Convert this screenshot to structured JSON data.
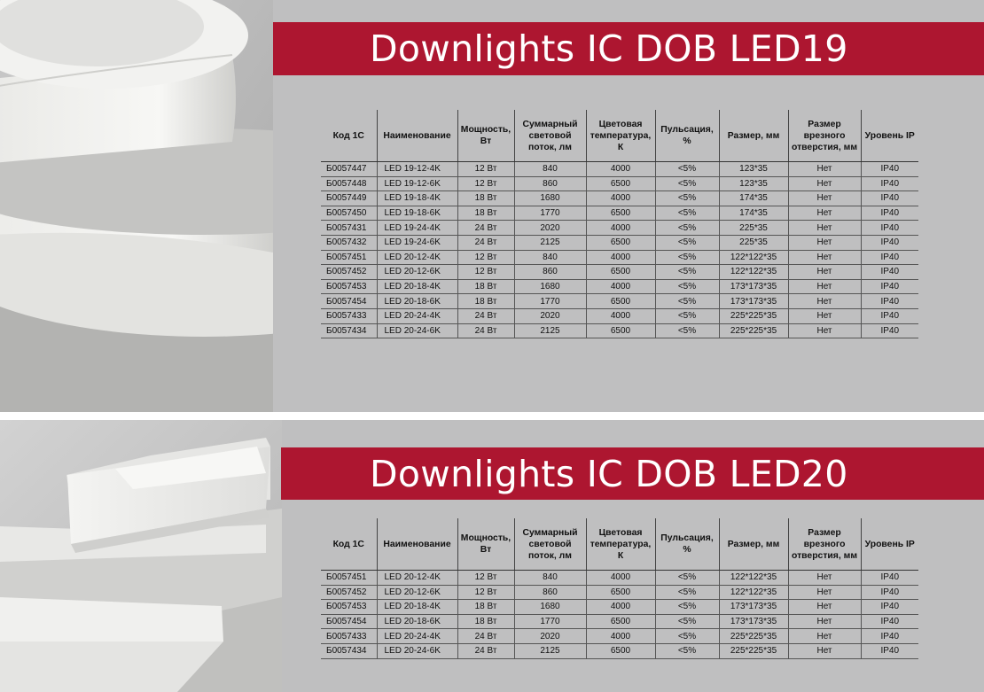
{
  "headers": [
    "Код 1С",
    "Наименование",
    "Мощность, Вт",
    "Суммарный световой поток, лм",
    "Цветовая температура, К",
    "Пульсация, %",
    "Размер, мм",
    "Размер врезного отверстия, мм",
    "Уровень IP"
  ],
  "sections": [
    {
      "title": "Downlights IC DOB LED19",
      "rows": [
        [
          "Б0057447",
          "LED 19-12-4K",
          "12 Вт",
          "840",
          "4000",
          "<5%",
          "123*35",
          "Нет",
          "IP40"
        ],
        [
          "Б0057448",
          "LED 19-12-6K",
          "12 Вт",
          "860",
          "6500",
          "<5%",
          "123*35",
          "Нет",
          "IP40"
        ],
        [
          "Б0057449",
          "LED 19-18-4K",
          "18 Вт",
          "1680",
          "4000",
          "<5%",
          "174*35",
          "Нет",
          "IP40"
        ],
        [
          "Б0057450",
          "LED 19-18-6K",
          "18 Вт",
          "1770",
          "6500",
          "<5%",
          "174*35",
          "Нет",
          "IP40"
        ],
        [
          "Б0057431",
          "LED 19-24-4K",
          "24 Вт",
          "2020",
          "4000",
          "<5%",
          "225*35",
          "Нет",
          "IP40"
        ],
        [
          "Б0057432",
          "LED 19-24-6K",
          "24 Вт",
          "2125",
          "6500",
          "<5%",
          "225*35",
          "Нет",
          "IP40"
        ],
        [
          "Б0057451",
          "LED 20-12-4K",
          "12 Вт",
          "840",
          "4000",
          "<5%",
          "122*122*35",
          "Нет",
          "IP40"
        ],
        [
          "Б0057452",
          "LED 20-12-6K",
          "12 Вт",
          "860",
          "6500",
          "<5%",
          "122*122*35",
          "Нет",
          "IP40"
        ],
        [
          "Б0057453",
          "LED 20-18-4K",
          "18 Вт",
          "1680",
          "4000",
          "<5%",
          "173*173*35",
          "Нет",
          "IP40"
        ],
        [
          "Б0057454",
          "LED 20-18-6K",
          "18 Вт",
          "1770",
          "6500",
          "<5%",
          "173*173*35",
          "Нет",
          "IP40"
        ],
        [
          "Б0057433",
          "LED 20-24-4K",
          "24 Вт",
          "2020",
          "4000",
          "<5%",
          "225*225*35",
          "Нет",
          "IP40"
        ],
        [
          "Б0057434",
          "LED 20-24-6K",
          "24 Вт",
          "2125",
          "6500",
          "<5%",
          "225*225*35",
          "Нет",
          "IP40"
        ]
      ]
    },
    {
      "title": "Downlights IC DOB LED20",
      "rows": [
        [
          "Б0057451",
          "LED 20-12-4K",
          "12 Вт",
          "840",
          "4000",
          "<5%",
          "122*122*35",
          "Нет",
          "IP40"
        ],
        [
          "Б0057452",
          "LED 20-12-6K",
          "12 Вт",
          "860",
          "6500",
          "<5%",
          "122*122*35",
          "Нет",
          "IP40"
        ],
        [
          "Б0057453",
          "LED 20-18-4K",
          "18 Вт",
          "1680",
          "4000",
          "<5%",
          "173*173*35",
          "Нет",
          "IP40"
        ],
        [
          "Б0057454",
          "LED 20-18-6K",
          "18 Вт",
          "1770",
          "6500",
          "<5%",
          "173*173*35",
          "Нет",
          "IP40"
        ],
        [
          "Б0057433",
          "LED 20-24-4K",
          "24 Вт",
          "2020",
          "4000",
          "<5%",
          "225*225*35",
          "Нет",
          "IP40"
        ],
        [
          "Б0057434",
          "LED 20-24-6K",
          "24 Вт",
          "2125",
          "6500",
          "<5%",
          "225*225*35",
          "Нет",
          "IP40"
        ]
      ]
    }
  ],
  "colors": {
    "title_band": "#ad1630",
    "panel_bg": "#bfbfc0",
    "separator": "#ffffff"
  }
}
